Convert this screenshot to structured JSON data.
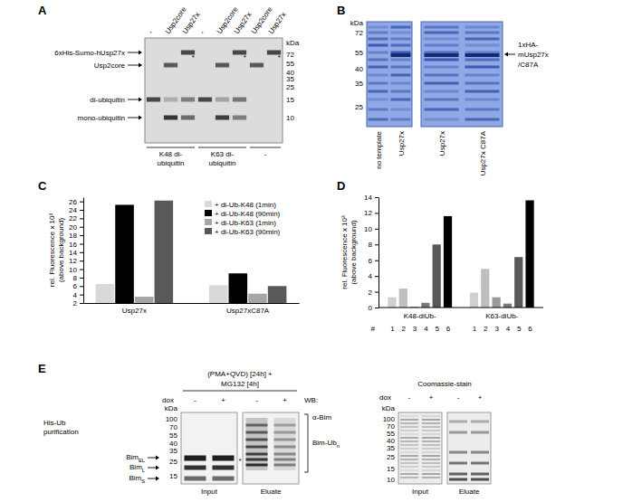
{
  "panels": {
    "A": {
      "letter": "A",
      "lanes": [
        "-",
        "Usp2core",
        "Usp27x",
        "-",
        "Usp2core",
        "Usp27x",
        "Usp2core",
        "Usp27x"
      ],
      "groups": [
        [
          "K48 di-",
          "ubiquitin"
        ],
        [
          "K63 di-",
          "ubiquitin"
        ],
        [
          "-"
        ]
      ],
      "unit": "kDa",
      "markers": [
        72,
        55,
        40,
        35,
        25,
        15,
        10
      ],
      "bands": [
        "6xHis-Sumo-hUsp27x",
        "Usp2core",
        "di-ubiquitin",
        "mono-ubiquitin"
      ],
      "asterisk": "*"
    },
    "B": {
      "letter": "B",
      "unit": "kDa",
      "markers": [
        72,
        55,
        40,
        35,
        25
      ],
      "lanes": [
        "no template",
        "Usp27x",
        "Usp27x",
        "Usp27x C87A"
      ],
      "band": [
        "1xHA-",
        "mUsp27x",
        "/C87A"
      ]
    },
    "E": {
      "letter": "E",
      "blot": {
        "condition": [
          "(PMA+QVD) [24h] +",
          "MG132 [4h]"
        ],
        "row_label": [
          "His-Ub",
          "purification"
        ],
        "dox": "dox",
        "lanes": [
          "-",
          "+",
          "-",
          "+"
        ],
        "unit": "kDa",
        "markers": [
          100,
          70,
          55,
          40,
          35,
          25,
          15
        ],
        "wb": "WB:",
        "antibody": "α-Bim",
        "species": [
          {
            "base": "Bim",
            "sub": "EL"
          },
          {
            "base": "Bim",
            "sub": "L"
          },
          {
            "base": "Bim",
            "sub": "S"
          }
        ],
        "ladder": {
          "base": "Bim-Ub",
          "sub": "n"
        },
        "groups": [
          "Input",
          "Eluate"
        ],
        "asterisk": "*"
      },
      "stain": {
        "title": "Coomassie-stain",
        "dox": "dox",
        "lanes": [
          "-",
          "+",
          "-",
          "+"
        ],
        "unit": "kDa",
        "markers": [
          100,
          70,
          55,
          40,
          35,
          25,
          15,
          10
        ],
        "groups": [
          "Input",
          "Eluate"
        ]
      }
    }
  },
  "chart_data": [
    {
      "type": "bar",
      "title": "C",
      "ylabel": [
        "rel. Fluorescence x 10³",
        "(above background)"
      ],
      "categories": [
        "Usp27x",
        "Usp27xC87A"
      ],
      "series": [
        {
          "name": "+ di-Ub-K48 (1min)",
          "color": "#d9d9d9",
          "values": [
            6.5,
            6.2
          ]
        },
        {
          "name": "+ di-Ub-K48 (90min)",
          "color": "#000000",
          "values": [
            25.2,
            9
          ]
        },
        {
          "name": "+ di-Ub-K63 (1min)",
          "color": "#a6a6a6",
          "values": [
            3.5,
            4.2
          ]
        },
        {
          "name": "+ di-Ub-K63 (90min)",
          "color": "#595959",
          "values": [
            26.2,
            6
          ]
        }
      ],
      "ylim": [
        2,
        27
      ],
      "yticks": [
        2,
        4,
        6,
        8,
        10,
        12,
        14,
        16,
        18,
        20,
        22,
        24,
        26
      ],
      "legend": "top-right"
    },
    {
      "type": "bar",
      "title": "D",
      "ylabel": [
        "rel. Fluorescence x 10³",
        "(above background)"
      ],
      "categories": [
        "1",
        "2",
        "3",
        "4",
        "5",
        "6",
        "1",
        "2",
        "3",
        "4",
        "5",
        "6"
      ],
      "category_groups": [
        "K48-diUb-",
        "K63-diUb-"
      ],
      "category_prefix": "#",
      "values": [
        1.3,
        2.4,
        0.1,
        0.6,
        8.0,
        11.6,
        1.9,
        4.9,
        1.3,
        0.5,
        6.4,
        13.6
      ],
      "colors": [
        "#d0d0d0",
        "#bfbfbf",
        "#9a9a9a",
        "#7a7a7a",
        "#595959",
        "#000000",
        "#d0d0d0",
        "#bfbfbf",
        "#9a9a9a",
        "#7a7a7a",
        "#595959",
        "#000000"
      ],
      "ylim": [
        0,
        14
      ],
      "yticks": [
        0,
        2,
        4,
        6,
        8,
        10,
        12,
        14
      ]
    }
  ]
}
